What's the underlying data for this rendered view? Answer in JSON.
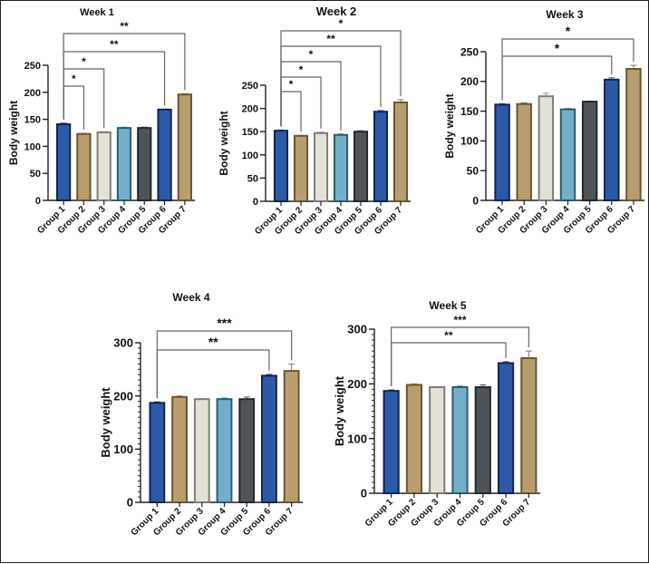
{
  "chart_data": [
    {
      "type": "bar",
      "title": "Week 1",
      "xlabel": "",
      "ylabel": "Body weight",
      "ylim": [
        0,
        250
      ],
      "yticks": [
        0,
        50,
        100,
        150,
        200,
        250
      ],
      "minor_ticks": false,
      "grid": false,
      "categories": [
        "Group 1",
        "Group 2",
        "Group 3",
        "Group 4",
        "Group 5",
        "Group 6",
        "Group 7"
      ],
      "values": [
        141,
        123,
        126,
        134,
        134,
        168,
        196
      ],
      "errors": [
        2,
        1,
        1,
        1.5,
        1.5,
        1,
        1.5
      ],
      "comparisons": [
        {
          "from": "Group 1",
          "to": "Group 2",
          "label": "*"
        },
        {
          "from": "Group 1",
          "to": "Group 3",
          "label": "*"
        },
        {
          "from": "Group 1",
          "to": "Group 6",
          "label": "**"
        },
        {
          "from": "Group 1",
          "to": "Group 7",
          "label": "**"
        }
      ]
    },
    {
      "type": "bar",
      "title": "Week 2",
      "xlabel": "",
      "ylabel": "Body weight",
      "ylim": [
        0,
        250
      ],
      "yticks": [
        0,
        50,
        100,
        150,
        200,
        250
      ],
      "minor_ticks": false,
      "grid": false,
      "categories": [
        "Group 1",
        "Group 2",
        "Group 3",
        "Group 4",
        "Group 5",
        "Group 6",
        "Group 7"
      ],
      "values": [
        152,
        141,
        147,
        143,
        150,
        193,
        213
      ],
      "errors": [
        1.5,
        1,
        2,
        2,
        2,
        2.5,
        6
      ],
      "comparisons": [
        {
          "from": "Group 1",
          "to": "Group 2",
          "label": "*"
        },
        {
          "from": "Group 1",
          "to": "Group 3",
          "label": "*"
        },
        {
          "from": "Group 1",
          "to": "Group 4",
          "label": "*"
        },
        {
          "from": "Group 1",
          "to": "Group 6",
          "label": "**"
        },
        {
          "from": "Group 1",
          "to": "Group 7",
          "label": "*"
        }
      ]
    },
    {
      "type": "bar",
      "title": "Week 3",
      "xlabel": "",
      "ylabel": "Body weight",
      "ylim": [
        0,
        250
      ],
      "yticks": [
        0,
        50,
        100,
        150,
        200,
        250
      ],
      "minor_ticks": false,
      "grid": false,
      "categories": [
        "Group 1",
        "Group 2",
        "Group 3",
        "Group 4",
        "Group 5",
        "Group 6",
        "Group 7"
      ],
      "values": [
        161,
        162,
        175,
        153,
        166,
        203,
        221
      ],
      "errors": [
        1.5,
        2,
        5,
        1.5,
        1,
        3,
        6
      ],
      "comparisons": [
        {
          "from": "Group 1",
          "to": "Group 6",
          "label": "*"
        },
        {
          "from": "Group 1",
          "to": "Group 7",
          "label": "*"
        }
      ]
    },
    {
      "type": "bar",
      "title": "Week 4",
      "xlabel": "",
      "ylabel": "Body weight",
      "ylim": [
        0,
        300
      ],
      "yticks": [
        0,
        100,
        200,
        300
      ],
      "minor_ticks": true,
      "grid": false,
      "categories": [
        "Group 1",
        "Group 2",
        "Group 3",
        "Group 4",
        "Group 5",
        "Group 6",
        "Group 7"
      ],
      "values": [
        187,
        198,
        194,
        194,
        194,
        238,
        247
      ],
      "errors": [
        2,
        2,
        1,
        2,
        4,
        2.5,
        13
      ],
      "comparisons": [
        {
          "from": "Group 1",
          "to": "Group 6",
          "label": "**"
        },
        {
          "from": "Group 1",
          "to": "Group 7",
          "label": "***"
        }
      ]
    },
    {
      "type": "bar",
      "title": "Week 5",
      "xlabel": "",
      "ylabel": "Body weight",
      "ylim": [
        0,
        300
      ],
      "yticks": [
        0,
        100,
        200,
        300
      ],
      "minor_ticks": true,
      "grid": false,
      "categories": [
        "Group 1",
        "Group 2",
        "Group 3",
        "Group 4",
        "Group 5",
        "Group 6",
        "Group 7"
      ],
      "values": [
        187,
        198,
        194,
        194,
        194,
        238,
        247
      ],
      "errors": [
        2,
        2,
        1,
        2,
        4,
        2.5,
        13
      ],
      "comparisons": [
        {
          "from": "Group 1",
          "to": "Group 6",
          "label": "**"
        },
        {
          "from": "Group 1",
          "to": "Group 7",
          "label": "***"
        }
      ]
    }
  ],
  "series_colors": {
    "Group 1": {
      "fill": "#2c5aa8",
      "stroke": "#14244d"
    },
    "Group 2": {
      "fill": "#b89e6f",
      "stroke": "#6b5631"
    },
    "Group 3": {
      "fill": "#e3e0d5",
      "stroke": "#7d7d7a"
    },
    "Group 4": {
      "fill": "#72afcb",
      "stroke": "#2e5d70"
    },
    "Group 5": {
      "fill": "#4f5459",
      "stroke": "#25282b"
    },
    "Group 6": {
      "fill": "#2c5aa8",
      "stroke": "#14244d"
    },
    "Group 7": {
      "fill": "#b89e6f",
      "stroke": "#6b5631"
    }
  },
  "axis_color": "#222222",
  "bracket_color": "#666666"
}
